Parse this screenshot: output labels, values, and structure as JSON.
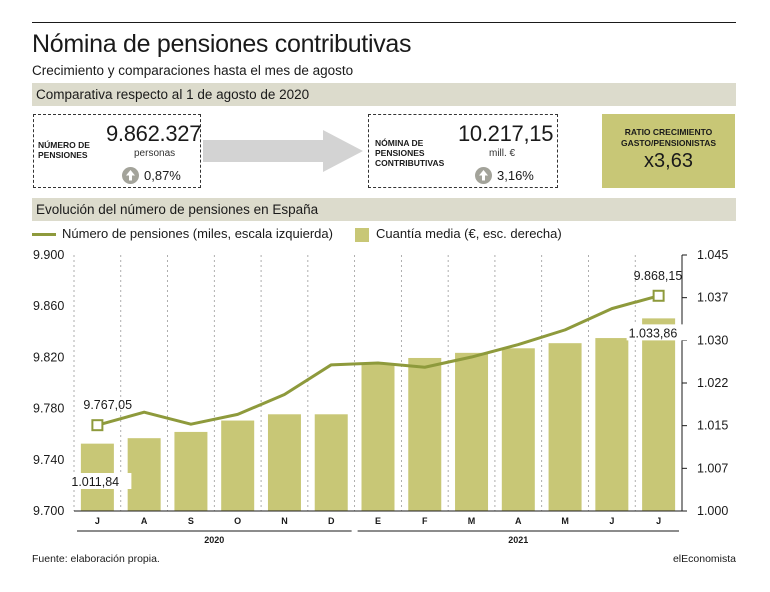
{
  "header": {
    "title": "Nómina de pensiones contributivas",
    "subtitle": "Crecimiento y comparaciones hasta el mes de agosto"
  },
  "section1": {
    "title": "Comparativa respecto al 1 de agosto de 2020"
  },
  "card_pensiones": {
    "label_line1": "NÚMERO DE",
    "label_line2": "PENSIONES",
    "value": "9.862.327",
    "unit": "personas",
    "change": "0,87%",
    "icon": "arrow-up-circle-icon"
  },
  "card_nomina": {
    "label_line1": "NÓMINA DE",
    "label_line2": "PENSIONES",
    "label_line3": "CONTRIBUTIVAS",
    "value": "10.217,15",
    "unit": "mill. €",
    "change": "3,16%",
    "icon": "arrow-up-circle-icon"
  },
  "ratio": {
    "label_line1": "RATIO CRECIMIENTO",
    "label_line2": "GASTO/PENSIONISTAS",
    "value": "x3,63"
  },
  "section2": {
    "title": "Evolución del número de pensiones en España"
  },
  "legend": {
    "line": "Número de pensiones (miles, escala izquierda)",
    "bar": "Cuantía media (€, esc. derecha)"
  },
  "colors": {
    "line": "#8e9a3c",
    "bar": "#c8c776",
    "band": "#dcdbcc"
  },
  "chart_data": {
    "type": "bar",
    "categories": [
      "J",
      "A",
      "S",
      "O",
      "N",
      "D",
      "E",
      "F",
      "M",
      "A",
      "M",
      "J",
      "J"
    ],
    "year_groups": [
      {
        "label": "2020",
        "from": 0,
        "to": 5
      },
      {
        "label": "2021",
        "from": 6,
        "to": 12
      }
    ],
    "bar_series": {
      "name": "Cuantía media (€, esc. derecha)",
      "axis": "right",
      "values": [
        1011.84,
        1012.8,
        1013.9,
        1015.9,
        1017.0,
        1017.0,
        1026.0,
        1026.9,
        1027.8,
        1028.6,
        1029.5,
        1030.4,
        1033.86
      ]
    },
    "line_series": {
      "name": "Número de pensiones (miles, escala izquierda)",
      "axis": "left",
      "values": [
        9767.05,
        9777.2,
        9767.8,
        9775.5,
        9791.0,
        9814.2,
        9815.6,
        9812.3,
        9820.3,
        9830.0,
        9841.5,
        9858.1,
        9868.15
      ]
    },
    "annotations": [
      {
        "series": "line",
        "index": 0,
        "text": "9.767,05"
      },
      {
        "series": "line",
        "index": 12,
        "text": "9.868,15"
      },
      {
        "series": "bar",
        "index": 0,
        "text": "1.011,84"
      },
      {
        "series": "bar",
        "index": 12,
        "text": "1.033,86"
      }
    ],
    "y_left": {
      "ylim": [
        9700,
        9900
      ],
      "ticks": [
        "9.900",
        "9.860",
        "9.820",
        "9.780",
        "9.740",
        "9.700"
      ],
      "tick_values": [
        9900,
        9860,
        9820,
        9780,
        9740,
        9700
      ]
    },
    "y_right": {
      "ylim": [
        1000,
        1045
      ],
      "ticks": [
        "1.045",
        "1.037",
        "1.030",
        "1.022",
        "1.015",
        "1.007",
        "1.000"
      ],
      "tick_values": [
        1045,
        1037.5,
        1030,
        1022.5,
        1015,
        1007.5,
        1000
      ]
    },
    "grid": "vertical-dashed"
  },
  "footer": {
    "source": "Fuente: elaboración propia.",
    "brand": "elEconomista"
  }
}
